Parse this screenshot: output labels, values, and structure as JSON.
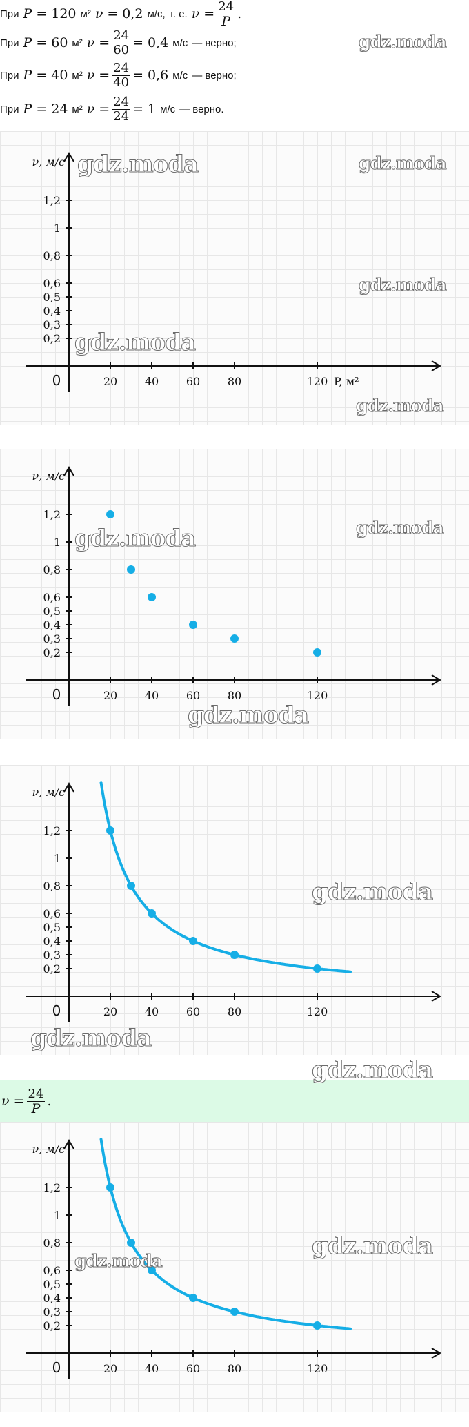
{
  "text_lines": [
    {
      "prefix": "При",
      "P": "120",
      "unit_area": "м²",
      "nu_value": "0,2",
      "unit_speed": "м/с,",
      "tail": "т. е.",
      "frac_num": "24",
      "frac_den": "P",
      "end": "."
    },
    {
      "prefix": "При",
      "P": "60",
      "unit_area": "м²",
      "frac_num": "24",
      "frac_den": "60",
      "result": "0,4",
      "unit_speed": "м/с",
      "verdict": "— верно;"
    },
    {
      "prefix": "При",
      "P": "40",
      "unit_area": "м²",
      "frac_num": "24",
      "frac_den": "40",
      "result": "0,6",
      "unit_speed": "м/с",
      "verdict": "— верно;"
    },
    {
      "prefix": "При",
      "P": "24",
      "unit_area": "м²",
      "frac_num": "24",
      "frac_den": "24",
      "result": "1",
      "unit_speed": "м/с",
      "verdict": "— верно."
    }
  ],
  "symbols": {
    "P": "P",
    "nu": "ν",
    "eq": "="
  },
  "formula": {
    "lhs": "ν =",
    "num": "24",
    "den": "P",
    "end": "."
  },
  "watermark_text": "gdz.moda",
  "colors": {
    "accent": "#16aee6",
    "grid": "#e7e7e7",
    "axis": "#111111",
    "band": "#dcfae6"
  },
  "chart_data": [
    {
      "type": "scatter",
      "ylabel": "ν, м/с",
      "xlabel": "P, м²",
      "origin_label": "0",
      "x_ticks": [
        "20",
        "40",
        "60",
        "80",
        "120"
      ],
      "y_ticks": [
        "0,2",
        "0,3",
        "0,4",
        "0,5",
        "0,6",
        "0,8",
        "1",
        "1,2"
      ],
      "points": [],
      "curve": false
    },
    {
      "type": "scatter",
      "ylabel": "ν, м/с",
      "origin_label": "0",
      "x_ticks": [
        "20",
        "40",
        "60",
        "80",
        "120"
      ],
      "y_ticks": [
        "0,2",
        "0,3",
        "0,4",
        "0,5",
        "0,6",
        "0,8",
        "1",
        "1,2"
      ],
      "points": [
        {
          "x": 20,
          "y": 1.2
        },
        {
          "x": 30,
          "y": 0.8
        },
        {
          "x": 40,
          "y": 0.6
        },
        {
          "x": 60,
          "y": 0.4
        },
        {
          "x": 80,
          "y": 0.3
        },
        {
          "x": 120,
          "y": 0.2
        }
      ],
      "curve": false
    },
    {
      "type": "line",
      "ylabel": "ν, м/с",
      "origin_label": "0",
      "x_ticks": [
        "20",
        "40",
        "60",
        "80",
        "120"
      ],
      "y_ticks": [
        "0,2",
        "0,3",
        "0,4",
        "0,5",
        "0,6",
        "0,8",
        "1",
        "1,2"
      ],
      "points": [
        {
          "x": 20,
          "y": 1.2
        },
        {
          "x": 30,
          "y": 0.8
        },
        {
          "x": 40,
          "y": 0.6
        },
        {
          "x": 60,
          "y": 0.4
        },
        {
          "x": 80,
          "y": 0.3
        },
        {
          "x": 120,
          "y": 0.2
        }
      ],
      "curve": true,
      "curve_function": "24/P"
    },
    {
      "type": "line",
      "ylabel": "ν, м/с",
      "origin_label": "0",
      "x_ticks": [
        "20",
        "40",
        "60",
        "80",
        "120"
      ],
      "y_ticks": [
        "0,2",
        "0,3",
        "0,4",
        "0,5",
        "0,6",
        "0,8",
        "1",
        "1,2"
      ],
      "points": [
        {
          "x": 20,
          "y": 1.2
        },
        {
          "x": 30,
          "y": 0.8
        },
        {
          "x": 40,
          "y": 0.6
        },
        {
          "x": 60,
          "y": 0.4
        },
        {
          "x": 80,
          "y": 0.3
        },
        {
          "x": 120,
          "y": 0.2
        }
      ],
      "curve": true,
      "curve_function": "24/P"
    }
  ]
}
